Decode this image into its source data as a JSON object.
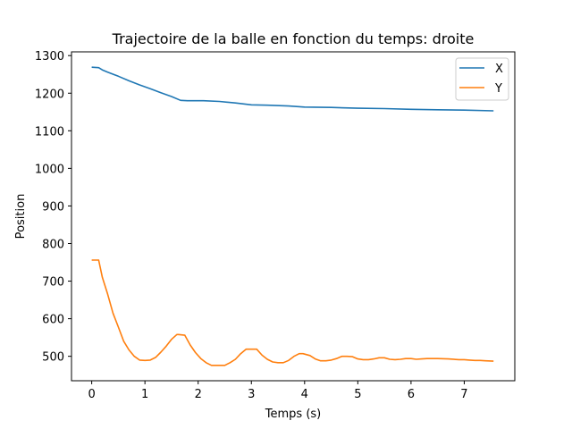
{
  "chart_data": {
    "type": "line",
    "title": "Trajectoire de la balle en fonction du temps: droite",
    "xlabel": "Temps (s)",
    "ylabel": "Position",
    "xlim": [
      -0.38,
      7.95
    ],
    "ylim": [
      435,
      1310
    ],
    "xticks": [
      0,
      1,
      2,
      3,
      4,
      5,
      6,
      7
    ],
    "yticks": [
      500,
      600,
      700,
      800,
      900,
      1000,
      1100,
      1200,
      1300
    ],
    "grid": false,
    "legend": {
      "position": "top-right"
    },
    "series": [
      {
        "name": "X",
        "color": "#1f77b4",
        "x": [
          0,
          0.13,
          0.2,
          0.3,
          0.5,
          0.7,
          0.9,
          1.1,
          1.3,
          1.5,
          1.67,
          1.8,
          2.1,
          2.4,
          2.7,
          3.0,
          3.3,
          3.7,
          4.0,
          4.5,
          5.0,
          5.5,
          6.0,
          6.5,
          7.0,
          7.55
        ],
        "y": [
          1269,
          1268,
          1262,
          1256,
          1245,
          1233,
          1222,
          1212,
          1201,
          1191,
          1181,
          1180,
          1180,
          1178,
          1174,
          1169,
          1168,
          1166,
          1163,
          1162,
          1160,
          1159,
          1157,
          1156,
          1155,
          1153
        ]
      },
      {
        "name": "Y",
        "color": "#ff7f0e",
        "x": [
          0,
          0.13,
          0.2,
          0.3,
          0.4,
          0.5,
          0.6,
          0.7,
          0.8,
          0.9,
          1.0,
          1.1,
          1.2,
          1.3,
          1.4,
          1.5,
          1.6,
          1.63,
          1.75,
          1.85,
          1.95,
          2.05,
          2.15,
          2.25,
          2.35,
          2.5,
          2.6,
          2.7,
          2.8,
          2.9,
          2.95,
          3.1,
          3.2,
          3.3,
          3.4,
          3.5,
          3.6,
          3.7,
          3.8,
          3.9,
          3.97,
          4.1,
          4.2,
          4.3,
          4.4,
          4.5,
          4.6,
          4.7,
          4.8,
          4.9,
          5.0,
          5.1,
          5.2,
          5.3,
          5.4,
          5.5,
          5.6,
          5.7,
          5.8,
          5.9,
          6.0,
          6.1,
          6.2,
          6.3,
          6.5,
          6.7,
          6.9,
          7.0,
          7.1,
          7.2,
          7.3,
          7.4,
          7.55
        ],
        "y": [
          756,
          756,
          710,
          665,
          615,
          578,
          540,
          517,
          500,
          490,
          489,
          490,
          497,
          511,
          527,
          545,
          558,
          558,
          556,
          530,
          510,
          494,
          483,
          476,
          476,
          476,
          483,
          492,
          507,
          519,
          519,
          519,
          503,
          492,
          485,
          483,
          483,
          489,
          500,
          507,
          507,
          502,
          493,
          488,
          488,
          490,
          494,
          500,
          500,
          499,
          493,
          491,
          491,
          493,
          496,
          496,
          492,
          491,
          492,
          494,
          494,
          492,
          493,
          494,
          494,
          493,
          491,
          491,
          490,
          489,
          489,
          488,
          487
        ]
      }
    ]
  }
}
